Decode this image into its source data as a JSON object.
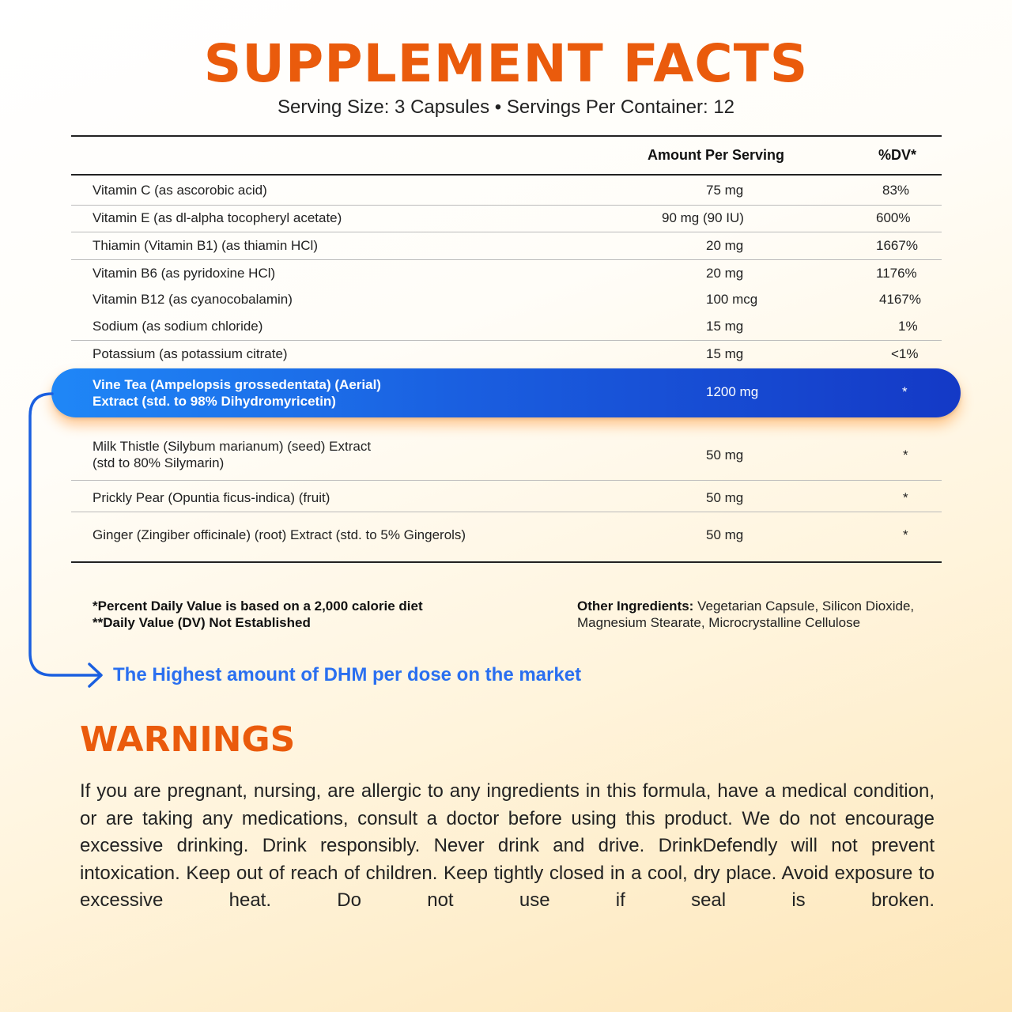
{
  "title": "SUPPLEMENT FACTS",
  "serving_line": "Serving Size: 3 Capsules • Servings Per Container: 12",
  "table": {
    "col_amount": "Amount Per Serving",
    "col_dv": "%DV*",
    "rows": [
      {
        "name": "Vitamin C (as ascorobic acid)",
        "amount": "75 mg",
        "dv": "83%"
      },
      {
        "name": "Vitamin E (as dl-alpha tocopheryl acetate)",
        "amount": "90 mg (90 IU)",
        "dv": "600%"
      },
      {
        "name": "Thiamin (Vitamin B1) (as thiamin HCl)",
        "amount": "20 mg",
        "dv": "1667%"
      },
      {
        "name": "Vitamin B6 (as pyridoxine HCl)",
        "amount": "20 mg",
        "dv": "1176%"
      },
      {
        "name": "Vitamin B12 (as cyanocobalamin)",
        "amount": "100 mcg",
        "dv": "4167%"
      },
      {
        "name": "Sodium (as sodium chloride)",
        "amount": "15 mg",
        "dv": "1%"
      },
      {
        "name": "Potassium (as potassium citrate)",
        "amount": "15 mg",
        "dv": "<1%"
      }
    ],
    "highlight": {
      "name_line1": "Vine Tea (Ampelopsis grossedentata) (Aerial)",
      "name_line2": "Extract (std. to 98% Dihydromyricetin)",
      "amount": "1200 mg",
      "dv": "*"
    },
    "rows_after": [
      {
        "name_line1": "Milk Thistle (Silybum marianum) (seed) Extract",
        "name_line2": "(std to 80% Silymarin)",
        "amount": "50 mg",
        "dv": "*"
      },
      {
        "name_line1": "Prickly Pear (Opuntia ficus-indica) (fruit)",
        "name_line2": "",
        "amount": "50 mg",
        "dv": "*"
      },
      {
        "name_line1": "Ginger (Zingiber officinale) (root) Extract  (std. to 5% Gingerols)",
        "name_line2": "",
        "amount": "50 mg",
        "dv": "*"
      }
    ]
  },
  "footnotes": {
    "line1": "*Percent Daily Value is based on a 2,000 calorie diet",
    "line2": "**Daily Value (DV) Not Established"
  },
  "other_ingredients": {
    "label": "Other Ingredients:",
    "text": " Vegetarian Capsule, Silicon Dioxide, Magnesium Stearate, Microcrystalline Cellulose"
  },
  "callout": "The Highest amount of DHM per dose on the market",
  "warnings": {
    "title": "WARNINGS",
    "text": "If you are pregnant, nursing, are allergic to any ingredients in this formula, have a medical condition, or are taking any medications, consult a doctor before using this product. We do not encourage excessive drinking. Drink responsibly. Never drink and drive. DrinkDefendly will not prevent intoxication. Keep out of reach of children. Keep tightly closed in a cool, dry place. Avoid exposure to excessive heat. Do not use if seal is broken."
  },
  "colors": {
    "accent_orange": "#ea5b0c",
    "accent_blue": "#1a5fe0",
    "callout_blue": "#2a6ff0"
  }
}
